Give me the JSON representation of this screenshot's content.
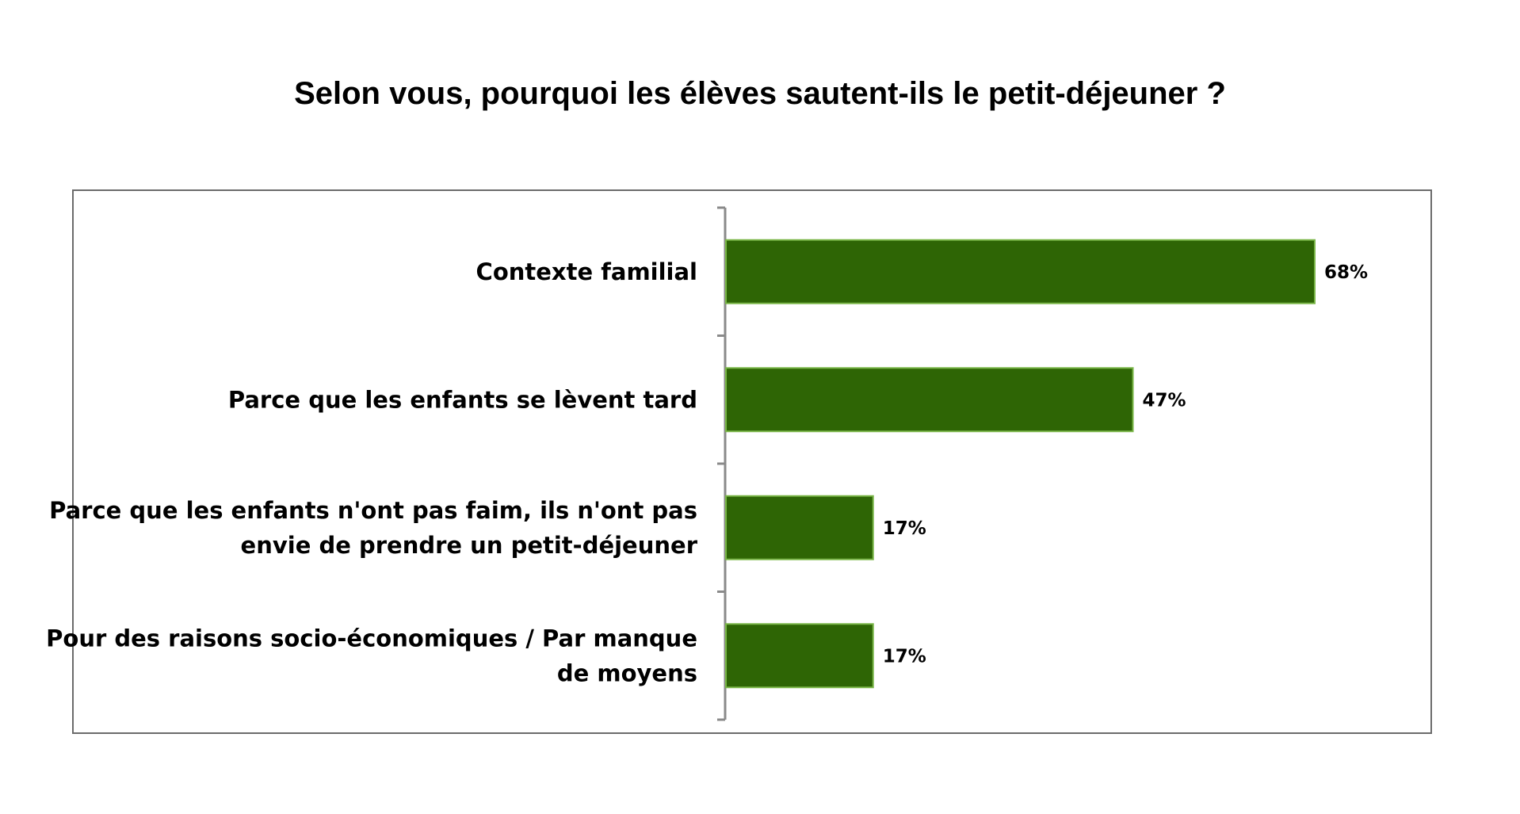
{
  "chart_data": {
    "type": "bar",
    "orientation": "horizontal",
    "title": "Selon vous, pourquoi les élèves sautent-ils le petit-déjeuner ?",
    "categories": [
      "Contexte familial",
      "Parce que les enfants se lèvent tard",
      "Parce que les enfants n'ont pas faim, ils n'ont pas envie de prendre un petit-déjeuner",
      "Pour des raisons socio-économiques / Par manque de moyens"
    ],
    "category_lines": [
      [
        "Contexte familial"
      ],
      [
        "Parce que les enfants se lèvent tard"
      ],
      [
        "Parce que les enfants n'ont pas faim, ils n'ont pas",
        "envie de prendre un petit-déjeuner"
      ],
      [
        "Pour des raisons socio-économiques / Par manque",
        "de moyens"
      ]
    ],
    "values": [
      68,
      47,
      17,
      17
    ],
    "value_labels": [
      "68%",
      "47%",
      "17%",
      "17%"
    ],
    "xlim": [
      0,
      100
    ],
    "unit": "%",
    "grid": false,
    "legend": "none",
    "bar_color": "#2e6505",
    "bar_edge_color": "#7ab648",
    "axis_color": "#8a8a8a"
  }
}
